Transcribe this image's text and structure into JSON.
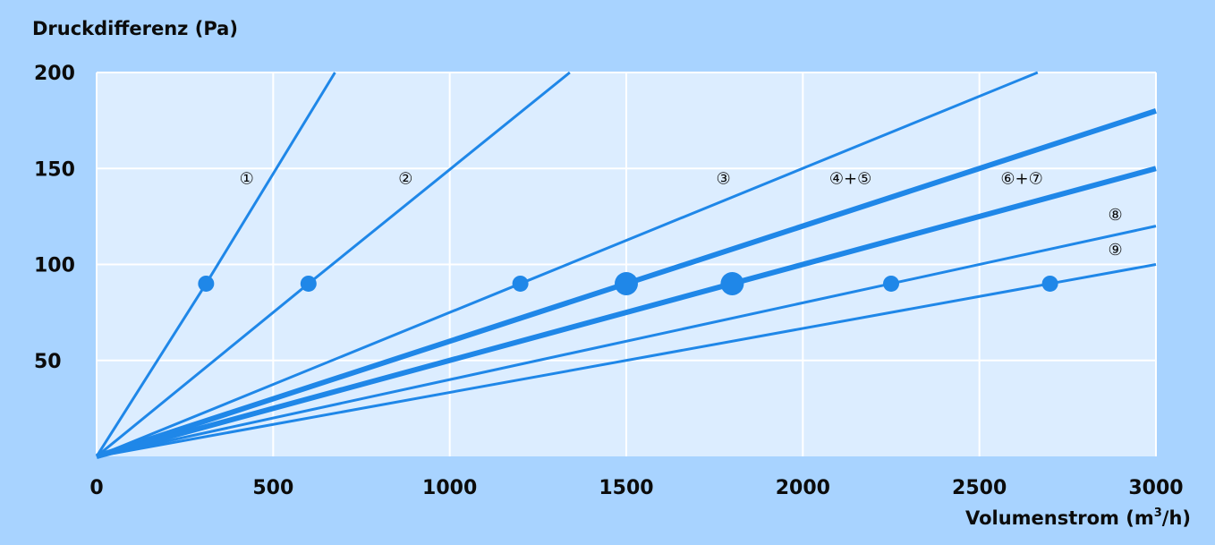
{
  "chart_data": {
    "type": "line",
    "ylabel": "Druckdifferenz (Pa)",
    "xlabel": "Volumenstrom (m³/h)",
    "xlabel_main": "Volumenstrom (m",
    "xlabel_sup": "3",
    "xlabel_tail": "/h)",
    "xlim": [
      0,
      3000
    ],
    "ylim": [
      0,
      200
    ],
    "xticks": [
      0,
      500,
      1000,
      1500,
      2000,
      2500,
      3000
    ],
    "yticks": [
      50,
      100,
      150,
      200
    ],
    "grid": true,
    "colors": {
      "panel_bg": "#a8d3ff",
      "plot_bg": "#dcedff",
      "grid": "#ffffff",
      "line": "#1f87e8",
      "text": "#0b0b0b"
    },
    "series": [
      {
        "name": "①",
        "thick": false,
        "x": [
          0,
          310,
          675
        ],
        "y": [
          0,
          90,
          200
        ],
        "marker": {
          "x": 310,
          "y": 90,
          "size": "small"
        },
        "label_pos": {
          "x": 425,
          "y": 142
        }
      },
      {
        "name": "②",
        "thick": false,
        "x": [
          0,
          600,
          1340
        ],
        "y": [
          0,
          90,
          200
        ],
        "marker": {
          "x": 600,
          "y": 90,
          "size": "small"
        },
        "label_pos": {
          "x": 875,
          "y": 142
        }
      },
      {
        "name": "③",
        "thick": false,
        "x": [
          0,
          1200,
          2665
        ],
        "y": [
          0,
          90,
          200
        ],
        "marker": {
          "x": 1200,
          "y": 90,
          "size": "small"
        },
        "label_pos": {
          "x": 1775,
          "y": 142
        }
      },
      {
        "name": "④+⑤",
        "thick": true,
        "x": [
          0,
          1500,
          3000
        ],
        "y": [
          0,
          90,
          180
        ],
        "marker": {
          "x": 1500,
          "y": 90,
          "size": "large"
        },
        "label_pos": {
          "x": 2135,
          "y": 142
        }
      },
      {
        "name": "⑥+⑦",
        "thick": true,
        "x": [
          0,
          1800,
          3000
        ],
        "y": [
          0,
          90,
          150
        ],
        "marker": {
          "x": 1800,
          "y": 90,
          "size": "large"
        },
        "label_pos": {
          "x": 2620,
          "y": 142
        }
      },
      {
        "name": "⑧",
        "thick": false,
        "x": [
          0,
          2250,
          3000
        ],
        "y": [
          0,
          90,
          120
        ],
        "marker": {
          "x": 2250,
          "y": 90,
          "size": "small"
        },
        "label_pos": {
          "x": 2885,
          "y": 123
        }
      },
      {
        "name": "⑨",
        "thick": false,
        "x": [
          0,
          2700,
          3000
        ],
        "y": [
          0,
          90,
          100
        ],
        "marker": {
          "x": 2700,
          "y": 90,
          "size": "small"
        },
        "label_pos": {
          "x": 2885,
          "y": 105
        }
      }
    ]
  }
}
